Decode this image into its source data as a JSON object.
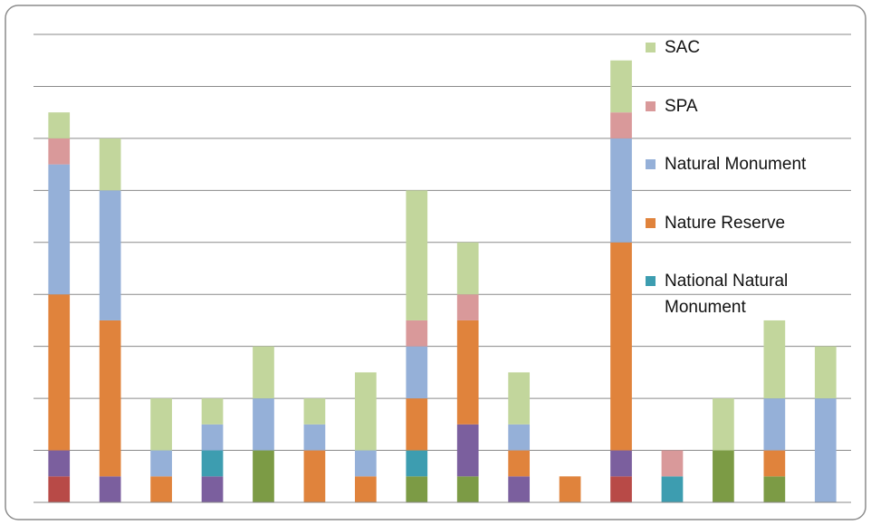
{
  "chart_data": {
    "type": "stacked_bar",
    "categories": [
      null,
      null,
      null,
      null,
      null,
      null,
      null,
      null,
      null,
      null,
      null,
      null,
      null,
      null,
      null,
      null
    ],
    "ylim": [
      0,
      9
    ],
    "yticks": [
      0,
      1,
      2,
      3,
      4,
      5,
      6,
      7,
      8,
      9
    ],
    "grid": true,
    "legend": "right",
    "series": [
      {
        "color": "#b84a47",
        "values": [
          0.5,
          null,
          null,
          null,
          null,
          null,
          null,
          null,
          null,
          null,
          null,
          0.5,
          null,
          null,
          null,
          null
        ]
      },
      {
        "color": "#7c9b45",
        "values": [
          null,
          null,
          null,
          null,
          1,
          null,
          null,
          0.5,
          0.5,
          null,
          null,
          null,
          null,
          1,
          0.5,
          null
        ]
      },
      {
        "color": "#7b5f9e",
        "values": [
          0.5,
          0.5,
          null,
          0.5,
          null,
          null,
          null,
          null,
          1,
          0.5,
          null,
          0.5,
          null,
          null,
          null,
          null
        ]
      },
      {
        "name": "National Natural Monument",
        "color": "#3d9db0",
        "values": [
          null,
          null,
          null,
          0.5,
          null,
          null,
          null,
          0.5,
          null,
          null,
          null,
          null,
          0.5,
          null,
          null,
          null
        ]
      },
      {
        "name": "Nature Reserve",
        "color": "#e0833c",
        "values": [
          3,
          3,
          0.5,
          null,
          null,
          1,
          0.5,
          1,
          2,
          0.5,
          0.5,
          4,
          null,
          null,
          0.5,
          null
        ]
      },
      {
        "name": "Natural Monument",
        "color": "#95b0d8",
        "values": [
          2.5,
          2.5,
          0.5,
          0.5,
          1,
          0.5,
          0.5,
          1,
          null,
          0.5,
          null,
          2,
          null,
          null,
          1,
          2
        ]
      },
      {
        "name": "SPA",
        "color": "#d9999a",
        "values": [
          0.5,
          null,
          null,
          null,
          null,
          null,
          null,
          0.5,
          0.5,
          null,
          null,
          0.5,
          0.5,
          null,
          null,
          null
        ]
      },
      {
        "name": "SAC",
        "color": "#c2d69c",
        "values": [
          0.5,
          1,
          1,
          0.5,
          1,
          0.5,
          1.5,
          2.5,
          1,
          1,
          null,
          1,
          null,
          1,
          1.5,
          1
        ]
      }
    ]
  }
}
